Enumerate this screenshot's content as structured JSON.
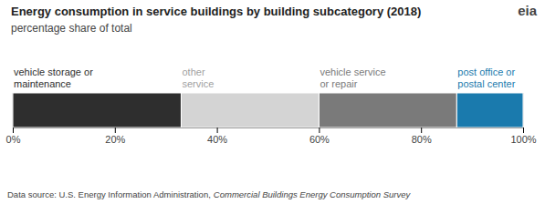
{
  "chart_data": {
    "type": "bar",
    "orientation": "horizontal",
    "stacked": true,
    "title": "Energy consumption in service buildings by building subcategory (2018)",
    "subtitle": "percentage share of total",
    "categories": [
      null
    ],
    "series": [
      {
        "name": "vehicle storage or\nmaintenance",
        "color": "#2e2e2e",
        "values": [
          33
        ]
      },
      {
        "name": "other\nservice",
        "color": "#d4d4d4",
        "values": [
          27
        ]
      },
      {
        "name": "vehicle service\nor repair",
        "color": "#7a7a7a",
        "values": [
          27
        ]
      },
      {
        "name": "post office or\npostal center",
        "color": "#1a7aad",
        "values": [
          13
        ]
      }
    ],
    "xlim": [
      0,
      100
    ],
    "xticks": [
      {
        "value": 0,
        "label": "0%"
      },
      {
        "value": 20,
        "label": "20%"
      },
      {
        "value": 40,
        "label": "40%"
      },
      {
        "value": 60,
        "label": "60%"
      },
      {
        "value": 80,
        "label": "80%"
      },
      {
        "value": 100,
        "label": "100%"
      }
    ],
    "grid": true,
    "annotations": [
      "eia",
      "Data source: U.S. Energy Information Administration,",
      "Commercial Buildings Energy Consumption Survey"
    ]
  }
}
